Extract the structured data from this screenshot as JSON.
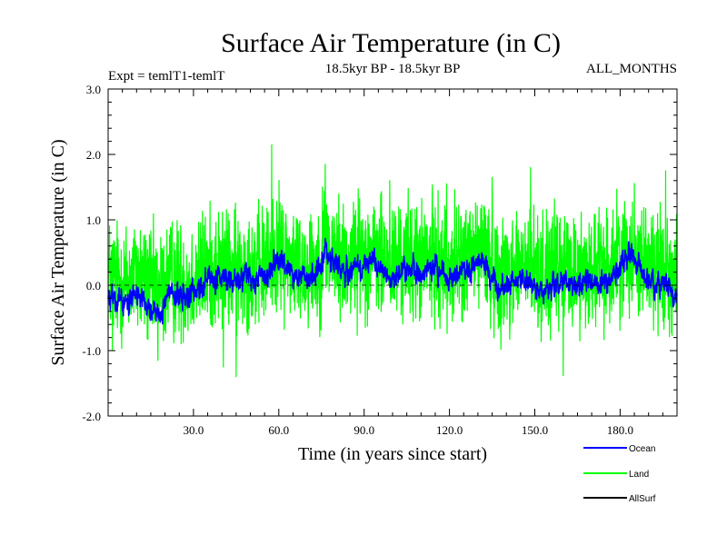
{
  "chart_data": {
    "type": "line",
    "title": "Surface Air Temperature (in C)",
    "subtitle_left": "Expt = temlT1-temlT",
    "subtitle_center": "18.5kyr BP - 18.5kyr BP",
    "subtitle_right": "ALL_MONTHS",
    "xlabel": "Time (in years since start)",
    "ylabel": "Surface Air Temperature (in C)",
    "xlim": [
      0,
      200
    ],
    "ylim": [
      -2.0,
      3.0
    ],
    "x_ticks": [
      30,
      60,
      90,
      120,
      150,
      180
    ],
    "x_tick_labels": [
      "30.0",
      "60.0",
      "90.0",
      "120.0",
      "150.0",
      "180.0"
    ],
    "y_ticks": [
      -2.0,
      -1.0,
      0.0,
      1.0,
      2.0,
      3.0
    ],
    "y_tick_labels": [
      "-2.0",
      "-1.0",
      "0.0",
      "1.0",
      "2.0",
      "3.0"
    ],
    "zero_line": 0.0,
    "samples_per_year": 12,
    "series": [
      {
        "name": "Ocean",
        "color": "#0000ff",
        "description": "monthly anomaly, smoothed trace between about -0.7 and 0.8",
        "anchors_x": [
          0,
          5,
          10,
          15,
          18,
          22,
          28,
          33,
          37,
          40,
          45,
          48,
          52,
          56,
          58,
          61,
          65,
          68,
          72,
          75,
          76,
          78,
          82,
          86,
          90,
          95,
          100,
          105,
          110,
          115,
          120,
          125,
          129,
          131,
          134,
          137,
          142,
          146,
          150,
          154,
          158,
          162,
          166,
          170,
          173,
          177,
          180,
          184,
          188,
          192,
          196,
          200
        ],
        "anchors_y": [
          -0.15,
          -0.3,
          -0.1,
          -0.35,
          -0.45,
          -0.1,
          -0.2,
          0.0,
          0.05,
          0.1,
          0.05,
          0.2,
          0.1,
          0.15,
          0.35,
          0.35,
          0.2,
          0.15,
          0.15,
          0.25,
          0.6,
          0.35,
          0.2,
          0.25,
          0.35,
          0.25,
          0.1,
          0.25,
          0.15,
          0.2,
          0.1,
          0.2,
          0.3,
          0.5,
          0.15,
          -0.1,
          0.05,
          0.1,
          0.0,
          -0.1,
          0.0,
          0.05,
          0.0,
          0.05,
          0.0,
          0.1,
          0.3,
          0.45,
          0.2,
          0.0,
          0.05,
          -0.25
        ],
        "amplitude": 0.17
      },
      {
        "name": "Land",
        "color": "#00ff00",
        "description": "monthly anomaly, noisy trace between about -1.4 and 2.15",
        "anchors_x": [
          0,
          5,
          10,
          15,
          18,
          22,
          28,
          33,
          37,
          40,
          45,
          48,
          52,
          56,
          58,
          61,
          65,
          68,
          72,
          75,
          76,
          78,
          82,
          86,
          90,
          95,
          100,
          105,
          110,
          115,
          120,
          125,
          129,
          131,
          134,
          137,
          142,
          146,
          150,
          154,
          158,
          162,
          166,
          170,
          173,
          177,
          180,
          184,
          188,
          192,
          196,
          200
        ],
        "anchors_y": [
          0.15,
          0.05,
          0.15,
          -0.05,
          -0.1,
          0.1,
          0.05,
          0.2,
          0.25,
          0.25,
          0.2,
          0.3,
          0.25,
          0.3,
          0.5,
          0.5,
          0.35,
          0.3,
          0.3,
          0.4,
          0.75,
          0.5,
          0.35,
          0.4,
          0.5,
          0.4,
          0.3,
          0.4,
          0.35,
          0.4,
          0.3,
          0.4,
          0.45,
          0.6,
          0.35,
          0.15,
          0.25,
          0.3,
          0.2,
          0.15,
          0.25,
          0.25,
          0.2,
          0.25,
          0.2,
          0.3,
          0.45,
          0.55,
          0.4,
          0.25,
          0.25,
          0.05
        ],
        "amplitude": 0.45,
        "spikes": [
          {
            "x": 57.5,
            "y": 2.15
          },
          {
            "x": 76.3,
            "y": 1.85
          },
          {
            "x": 148.5,
            "y": 1.8
          },
          {
            "x": 135.0,
            "y": 1.65
          },
          {
            "x": 45.0,
            "y": -1.4
          },
          {
            "x": 160.0,
            "y": -1.38
          },
          {
            "x": 40.5,
            "y": -1.25
          },
          {
            "x": 17.5,
            "y": -1.15
          },
          {
            "x": 1.5,
            "y": -1.0
          },
          {
            "x": 99.0,
            "y": 1.6
          },
          {
            "x": 119.0,
            "y": 1.55
          },
          {
            "x": 196.0,
            "y": 1.75
          }
        ]
      },
      {
        "name": "AllSurf",
        "color": "#000000",
        "description": "legend entry only; trace not visible in plot",
        "values": []
      }
    ],
    "legend_position": "bottom-right"
  }
}
